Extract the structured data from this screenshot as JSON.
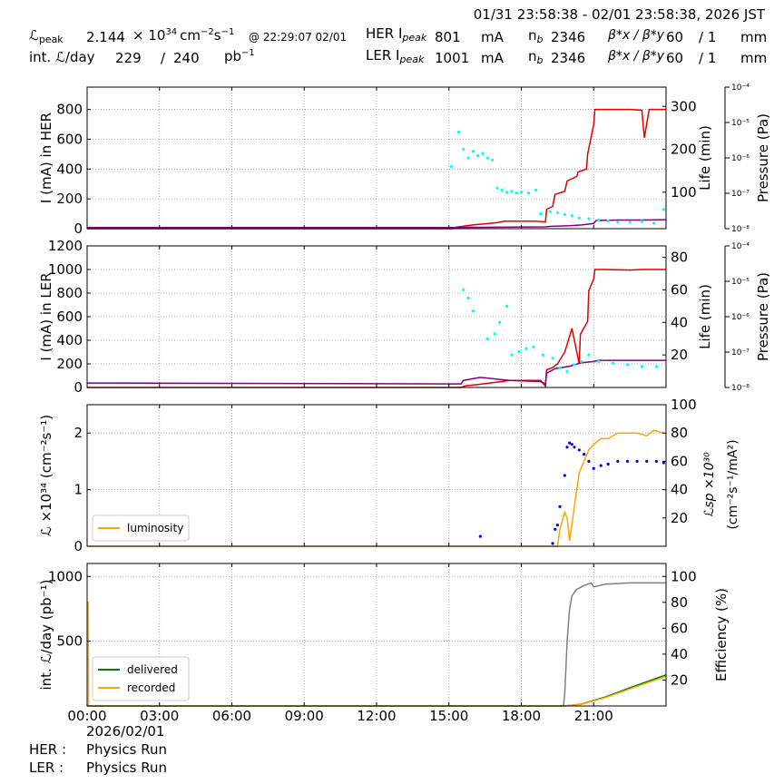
{
  "header": {
    "timerange": "01/31 23:58:38 - 02/01 23:58:38, 2026 JST",
    "lpeak_label": "ℒ",
    "lpeak_sub": "peak",
    "lpeak_value": "2.144",
    "lpeak_times": "× 10",
    "lpeak_exp": "34",
    "lpeak_unit": "cm",
    "lpeak_unit_exp1": "−2",
    "lpeak_unit_s": "s",
    "lpeak_unit_exp2": "−1",
    "lpeak_at": "@ 22:29:07 02/01",
    "intl_label": "int. ℒ/day",
    "intl_value": "229",
    "intl_slash": "/",
    "intl_total": "240",
    "intl_unit": "pb",
    "intl_unit_exp": "−1",
    "her_label": "HER I",
    "her_sub": "peak",
    "her_value": "801",
    "her_unit": "mA",
    "ler_label": "LER I",
    "ler_sub": "peak",
    "ler_value": "1001",
    "ler_unit": "mA",
    "nb_label": "n",
    "nb_sub": "b",
    "her_nb": "2346",
    "ler_nb": "2346",
    "beta_label": "β*x / β*y",
    "her_beta": "60",
    "her_beta_y": "/ 1",
    "ler_beta": "60",
    "ler_beta_y": "/ 1",
    "beta_unit": "mm"
  },
  "footer": {
    "date": "2026/02/01",
    "her_label": "HER :",
    "her_mode": "Physics Run",
    "ler_label": "LER :",
    "ler_mode": "Physics Run"
  },
  "colors": {
    "current": "#e00000",
    "life": "#00ffff",
    "pressure": "#800080",
    "luminosity": "#ffa500",
    "specific": "#0000ff",
    "delivered": "#008000",
    "recorded": "#ffa500",
    "efficiency": "#808080"
  },
  "chart_data": [
    {
      "type": "line",
      "panel": "her",
      "ylabel": "I (mA) in HER",
      "ylabel_right": "Life (min)",
      "ylabel_pressure": "Pressure (Pa)",
      "xlim": [
        0,
        24
      ],
      "ylim": [
        0,
        950
      ],
      "yticks": [
        0,
        200,
        400,
        600,
        800
      ],
      "y2lim": [
        15,
        345
      ],
      "y2ticks": [
        100,
        200,
        300
      ],
      "y3ticks": [
        "10⁻⁴",
        "10⁻⁵",
        "10⁻⁶",
        "10⁻⁷",
        "10⁻⁸"
      ],
      "series": [
        {
          "key": "current",
          "axis": "left",
          "x": [
            0,
            15.2,
            15.3,
            16.0,
            17.0,
            17.3,
            18.6,
            19.0,
            19.05,
            19.3,
            19.4,
            19.8,
            19.9,
            20.3,
            20.35,
            20.7,
            20.75,
            21.0,
            21.05,
            21.5,
            22.5,
            23.0,
            23.1,
            23.3,
            24
          ],
          "y": [
            0,
            0,
            10,
            25,
            40,
            50,
            50,
            45,
            130,
            150,
            230,
            250,
            320,
            350,
            380,
            400,
            500,
            700,
            800,
            800,
            800,
            795,
            610,
            800,
            800
          ]
        },
        {
          "key": "pressure",
          "axis": "left",
          "x": [
            0,
            15.3,
            17.0,
            19.0,
            19.2,
            20.0,
            20.5,
            21.0,
            21.1,
            22.0,
            23.0,
            24
          ],
          "y": [
            8,
            8,
            10,
            12,
            15,
            20,
            25,
            35,
            55,
            58,
            58,
            60
          ]
        },
        {
          "key": "life",
          "axis": "right",
          "scatter": true,
          "x": [
            15.1,
            15.4,
            15.6,
            15.8,
            16.0,
            16.2,
            16.4,
            16.6,
            16.8,
            17.0,
            17.2,
            17.4,
            17.6,
            17.8,
            18.0,
            18.3,
            18.6,
            18.8,
            19.2,
            19.5,
            19.8,
            20.1,
            20.4,
            20.8,
            21.2,
            21.6,
            22.0,
            22.5,
            23.0,
            23.5,
            23.9
          ],
          "y": [
            160,
            240,
            200,
            180,
            195,
            185,
            190,
            180,
            175,
            110,
            105,
            100,
            102,
            98,
            100,
            98,
            105,
            50,
            55,
            52,
            48,
            45,
            40,
            38,
            35,
            33,
            30,
            30,
            32,
            28,
            60
          ]
        }
      ]
    },
    {
      "type": "line",
      "panel": "ler",
      "ylabel": "I (mA) in LER",
      "ylabel_right": "Life (min)",
      "ylabel_pressure": "Pressure (Pa)",
      "xlim": [
        0,
        24
      ],
      "ylim": [
        0,
        1200
      ],
      "yticks": [
        0,
        200,
        400,
        600,
        800,
        1000,
        1200
      ],
      "y2lim": [
        0,
        87
      ],
      "y2ticks": [
        20,
        40,
        60,
        80
      ],
      "y3ticks": [
        "10⁻⁴",
        "10⁻⁵",
        "10⁻⁶",
        "10⁻⁷",
        "10⁻⁸"
      ],
      "series": [
        {
          "key": "current",
          "axis": "left",
          "x": [
            0,
            15.5,
            15.7,
            16.2,
            17.2,
            17.5,
            18.8,
            19.0,
            19.05,
            19.3,
            19.5,
            19.8,
            20.1,
            20.4,
            20.45,
            20.75,
            20.8,
            21.0,
            21.05,
            21.5,
            22.5,
            23.0,
            24
          ],
          "y": [
            0,
            0,
            15,
            25,
            50,
            60,
            60,
            10,
            150,
            170,
            200,
            300,
            500,
            200,
            450,
            560,
            820,
            920,
            1000,
            1000,
            995,
            1000,
            1000
          ]
        },
        {
          "key": "pressure",
          "axis": "left",
          "x": [
            0,
            15.5,
            15.6,
            16.3,
            17.5,
            18.8,
            19.0,
            19.05,
            19.4,
            20.0,
            20.5,
            21.0,
            21.2,
            24
          ],
          "y": [
            38,
            30,
            60,
            85,
            60,
            50,
            30,
            120,
            160,
            180,
            210,
            220,
            230,
            230
          ]
        },
        {
          "key": "life",
          "axis": "right",
          "scatter": true,
          "x": [
            15.6,
            15.8,
            16.0,
            16.6,
            16.9,
            17.1,
            17.4,
            17.6,
            17.9,
            18.2,
            18.5,
            18.9,
            19.3,
            19.6,
            19.9,
            20.2,
            20.5,
            20.8,
            21.2,
            21.8,
            22.4,
            23.0,
            23.6
          ],
          "y": [
            60,
            55,
            47,
            30,
            33,
            40,
            50,
            20,
            22,
            24,
            25,
            20,
            18,
            12,
            10,
            14,
            16,
            20,
            16,
            15,
            14,
            13,
            13
          ]
        }
      ]
    },
    {
      "type": "line",
      "panel": "luminosity",
      "ylabel": "ℒ ×10³⁴ (cm⁻²s⁻¹)",
      "ylabel_right": "ℒsp ×10³⁰",
      "ylabel_right2": "(cm⁻²s⁻¹/mA²)",
      "xlim": [
        0,
        24
      ],
      "ylim": [
        0,
        2.5
      ],
      "yticks": [
        0,
        1,
        2
      ],
      "y2lim": [
        0,
        100
      ],
      "y2ticks": [
        20,
        40,
        60,
        80,
        100
      ],
      "legend": [
        {
          "key": "luminosity",
          "label": "luminosity"
        }
      ],
      "legend_loc": "lower-left",
      "series": [
        {
          "key": "luminosity",
          "axis": "left",
          "name": "luminosity",
          "x": [
            0,
            19.5,
            19.6,
            19.8,
            19.9,
            20.0,
            20.2,
            20.4,
            20.6,
            20.8,
            21.0,
            21.3,
            21.6,
            22.0,
            22.4,
            22.8,
            23.2,
            23.5,
            23.9
          ],
          "y": [
            0,
            0,
            0.3,
            0.6,
            0.5,
            0.1,
            0.7,
            1.3,
            1.5,
            1.7,
            1.8,
            1.9,
            1.9,
            2.0,
            2.0,
            2.0,
            1.95,
            2.05,
            2.0
          ]
        },
        {
          "key": "specific",
          "axis": "right",
          "scatter": true,
          "x": [
            16.3,
            19.3,
            19.4,
            19.5,
            19.6,
            19.8,
            19.9,
            20.0,
            20.1,
            20.2,
            20.4,
            20.6,
            20.8,
            21.0,
            21.3,
            21.6,
            22.0,
            22.4,
            22.8,
            23.2,
            23.6,
            23.9
          ],
          "y": [
            7,
            2,
            12,
            15,
            28,
            50,
            70,
            73,
            72,
            70,
            68,
            65,
            60,
            55,
            57,
            58,
            60,
            60,
            60,
            60,
            60,
            59
          ]
        }
      ]
    },
    {
      "type": "line",
      "panel": "integrated",
      "ylabel": "int. ℒ/day (pb⁻¹)",
      "ylabel_right": "Efficiency (%)",
      "xlim": [
        0,
        24
      ],
      "xticks": [
        "00:00",
        "03:00",
        "06:00",
        "09:00",
        "12:00",
        "15:00",
        "18:00",
        "21:00"
      ],
      "ylim": [
        0,
        1100
      ],
      "yticks": [
        500,
        1000
      ],
      "y2lim": [
        0,
        110
      ],
      "y2ticks": [
        20,
        40,
        60,
        80,
        100
      ],
      "legend": [
        {
          "key": "delivered",
          "label": "delivered"
        },
        {
          "key": "recorded",
          "label": "recorded"
        }
      ],
      "legend_loc": "lower-left",
      "series": [
        {
          "key": "delivered",
          "axis": "left",
          "name": "delivered",
          "x": [
            0,
            19.8,
            20.5,
            21.5,
            22.5,
            24
          ],
          "y": [
            0,
            0,
            15,
            70,
            140,
            240
          ]
        },
        {
          "key": "recorded",
          "axis": "left",
          "name": "recorded",
          "x": [
            0,
            0.05,
            0.06,
            19.8,
            20.5,
            21.5,
            22.5,
            24
          ],
          "y": [
            800,
            800,
            0,
            0,
            13,
            65,
            132,
            229
          ]
        },
        {
          "key": "efficiency",
          "axis": "right",
          "x": [
            19.75,
            19.8,
            19.9,
            20.0,
            20.1,
            20.3,
            20.6,
            20.9,
            21.0,
            21.5,
            22.5,
            24
          ],
          "y": [
            0,
            10,
            50,
            75,
            85,
            90,
            93,
            95,
            92,
            94,
            95,
            95
          ]
        }
      ]
    }
  ]
}
